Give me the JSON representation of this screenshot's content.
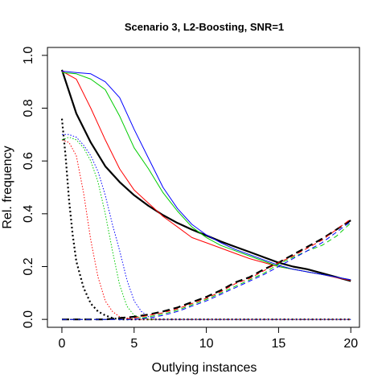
{
  "chart_data": {
    "type": "line",
    "title": "Scenario 3, L2-Boosting, SNR=1",
    "xlabel": "Outlying instances",
    "ylabel": "Rel. frequency",
    "xlim": [
      -1,
      20.6
    ],
    "ylim": [
      -0.03,
      1.03
    ],
    "xticks": [
      0,
      5,
      10,
      15,
      20
    ],
    "xtick_labels": [
      "0",
      "5",
      "10",
      "15",
      "20"
    ],
    "yticks": [
      0.0,
      0.2,
      0.4,
      0.6,
      0.8,
      1.0
    ],
    "ytick_labels": [
      "0.0",
      "0.2",
      "0.4",
      "0.6",
      "0.8",
      "1.0"
    ],
    "grid": false,
    "legend": "none",
    "series": [
      {
        "color": "#000000",
        "style": "solid",
        "width": 2.2,
        "x": [
          0,
          1,
          2,
          3,
          4,
          5,
          6,
          7,
          8,
          9,
          10,
          11,
          12,
          13,
          14,
          15,
          16,
          17,
          18,
          19,
          20
        ],
        "y": [
          0.945,
          0.78,
          0.67,
          0.58,
          0.52,
          0.47,
          0.43,
          0.395,
          0.365,
          0.34,
          0.318,
          0.295,
          0.275,
          0.255,
          0.235,
          0.215,
          0.2,
          0.19,
          0.175,
          0.16,
          0.145
        ]
      },
      {
        "color": "#ff0000",
        "style": "solid",
        "width": 1,
        "x": [
          0,
          1,
          2,
          3,
          4,
          5,
          6,
          7,
          8,
          9,
          10,
          11,
          12,
          13,
          14,
          15,
          16,
          17,
          18,
          19,
          20
        ],
        "y": [
          0.94,
          0.91,
          0.8,
          0.68,
          0.57,
          0.49,
          0.44,
          0.39,
          0.35,
          0.31,
          0.29,
          0.27,
          0.25,
          0.23,
          0.215,
          0.2,
          0.19,
          0.18,
          0.17,
          0.158,
          0.148
        ]
      },
      {
        "color": "#00cc00",
        "style": "solid",
        "width": 1,
        "x": [
          0,
          1,
          2,
          3,
          4,
          5,
          6,
          7,
          8,
          9,
          10,
          11,
          12,
          13,
          14,
          15,
          16,
          17,
          18,
          19,
          20
        ],
        "y": [
          0.935,
          0.93,
          0.91,
          0.87,
          0.77,
          0.65,
          0.57,
          0.48,
          0.41,
          0.35,
          0.31,
          0.28,
          0.26,
          0.24,
          0.22,
          0.2,
          0.19,
          0.18,
          0.17,
          0.16,
          0.15
        ]
      },
      {
        "color": "#0000ff",
        "style": "solid",
        "width": 1,
        "x": [
          0,
          1,
          2,
          3,
          4,
          5,
          6,
          7,
          8,
          9,
          10,
          11,
          12,
          13,
          14,
          15,
          16,
          17,
          18,
          19,
          20
        ],
        "y": [
          0.94,
          0.935,
          0.93,
          0.9,
          0.84,
          0.72,
          0.61,
          0.5,
          0.42,
          0.36,
          0.32,
          0.29,
          0.265,
          0.245,
          0.225,
          0.205,
          0.19,
          0.18,
          0.17,
          0.16,
          0.15
        ]
      },
      {
        "color": "#000000",
        "style": "dotted",
        "width": 2.2,
        "x": [
          0,
          0.25,
          0.5,
          0.75,
          1,
          1.5,
          2,
          2.5,
          3,
          3.5,
          4,
          5,
          6,
          10,
          15,
          20
        ],
        "y": [
          0.76,
          0.62,
          0.45,
          0.32,
          0.22,
          0.12,
          0.06,
          0.03,
          0.015,
          0.005,
          0.0,
          0.0,
          0.0,
          0.0,
          0.0,
          0.0
        ]
      },
      {
        "color": "#ff0000",
        "style": "dotted",
        "width": 1,
        "x": [
          0,
          0.5,
          1,
          1.5,
          2,
          2.5,
          3,
          3.5,
          4,
          5,
          6,
          10,
          15,
          20
        ],
        "y": [
          0.68,
          0.67,
          0.62,
          0.48,
          0.3,
          0.16,
          0.07,
          0.03,
          0.01,
          0.0,
          0.0,
          0.0,
          0.0,
          0.0
        ]
      },
      {
        "color": "#00cc00",
        "style": "dotted",
        "width": 1,
        "x": [
          0,
          0.5,
          1,
          1.5,
          2,
          2.5,
          3,
          3.5,
          4,
          4.5,
          5,
          5.5,
          6,
          10,
          15,
          20
        ],
        "y": [
          0.68,
          0.69,
          0.68,
          0.65,
          0.6,
          0.52,
          0.4,
          0.26,
          0.13,
          0.05,
          0.015,
          0.005,
          0.0,
          0.0,
          0.0,
          0.0
        ]
      },
      {
        "color": "#0000ff",
        "style": "dotted",
        "width": 1,
        "x": [
          0,
          0.5,
          1,
          1.5,
          2,
          2.5,
          3,
          3.5,
          4,
          4.5,
          5,
          5.5,
          6,
          6.5,
          10,
          15,
          20
        ],
        "y": [
          0.7,
          0.7,
          0.69,
          0.66,
          0.62,
          0.56,
          0.47,
          0.36,
          0.26,
          0.15,
          0.07,
          0.03,
          0.01,
          0.0,
          0.0,
          0.0,
          0.0
        ]
      },
      {
        "color": "#000000",
        "style": "dashed",
        "width": 2.2,
        "x": [
          0,
          1,
          2,
          3,
          4,
          5,
          6,
          7,
          8,
          9,
          10,
          11,
          12,
          13,
          14,
          15,
          16,
          17,
          18,
          19,
          20
        ],
        "y": [
          0.0,
          0.0,
          0.0,
          0.0,
          0.005,
          0.01,
          0.018,
          0.03,
          0.045,
          0.065,
          0.085,
          0.11,
          0.14,
          0.16,
          0.19,
          0.215,
          0.245,
          0.275,
          0.305,
          0.34,
          0.375
        ]
      },
      {
        "color": "#ff0000",
        "style": "dashed",
        "width": 1,
        "x": [
          0,
          1,
          2,
          3,
          4,
          5,
          6,
          7,
          8,
          9,
          10,
          11,
          12,
          13,
          14,
          15,
          16,
          17,
          18,
          19,
          20
        ],
        "y": [
          0.0,
          0.0,
          0.0,
          0.0,
          0.0,
          0.005,
          0.015,
          0.025,
          0.04,
          0.06,
          0.08,
          0.105,
          0.135,
          0.155,
          0.185,
          0.215,
          0.24,
          0.27,
          0.3,
          0.34,
          0.38
        ]
      },
      {
        "color": "#00cc00",
        "style": "dashed",
        "width": 1,
        "x": [
          0,
          1,
          2,
          3,
          4,
          5,
          6,
          7,
          8,
          9,
          10,
          11,
          12,
          13,
          14,
          15,
          16,
          17,
          18,
          19,
          20
        ],
        "y": [
          0.0,
          0.0,
          0.0,
          0.0,
          0.0,
          0.0,
          0.01,
          0.02,
          0.035,
          0.055,
          0.075,
          0.1,
          0.125,
          0.15,
          0.175,
          0.21,
          0.235,
          0.26,
          0.28,
          0.315,
          0.365
        ]
      },
      {
        "color": "#0000ff",
        "style": "dashed",
        "width": 1,
        "x": [
          0,
          1,
          2,
          3,
          4,
          5,
          6,
          7,
          8,
          9,
          10,
          11,
          12,
          13,
          14,
          15,
          16,
          17,
          18,
          19,
          20
        ],
        "y": [
          0.0,
          0.0,
          0.0,
          0.0,
          0.0,
          0.0,
          0.005,
          0.015,
          0.03,
          0.05,
          0.07,
          0.095,
          0.12,
          0.145,
          0.17,
          0.2,
          0.23,
          0.26,
          0.29,
          0.33,
          0.37
        ]
      }
    ]
  }
}
